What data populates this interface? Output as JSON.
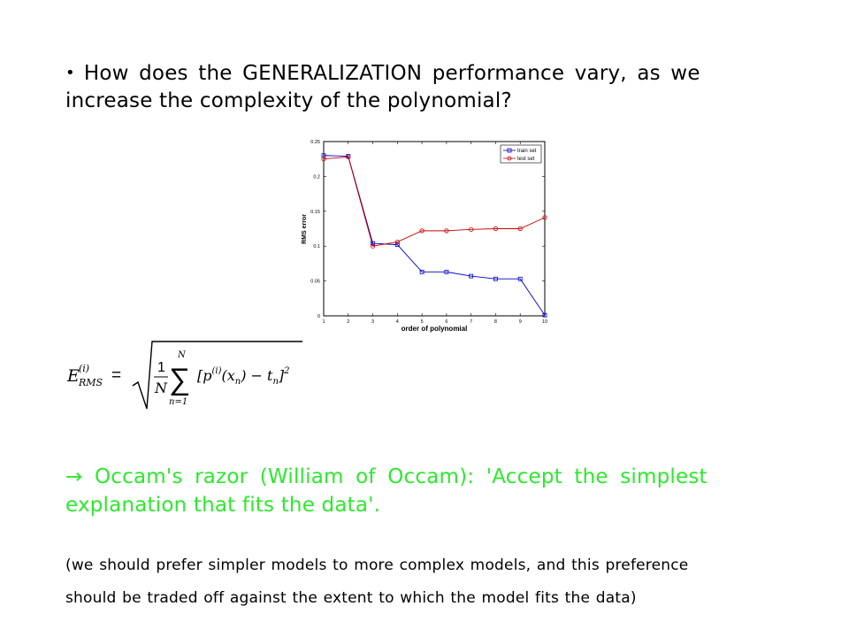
{
  "question": {
    "bullet": "•",
    "line1": "How does the GENERALIZATION performance vary, as we",
    "line2": "increase the complexity of the polynomial?"
  },
  "chart_data": {
    "type": "line",
    "xlabel": "order of polynomial",
    "ylabel": "RMS error",
    "xlim": [
      1,
      10
    ],
    "ylim": [
      0,
      0.25
    ],
    "x": [
      1,
      2,
      3,
      4,
      5,
      6,
      7,
      8,
      9,
      10
    ],
    "xticks": [
      "1",
      "2",
      "3",
      "4",
      "5",
      "6",
      "7",
      "8",
      "9",
      "10"
    ],
    "yticks": [
      "0",
      "0.05",
      "0.1",
      "0.15",
      "0.2",
      "0.25"
    ],
    "legend_position": "top-right",
    "series": [
      {
        "name": "train set",
        "color": "#0000cc",
        "marker": "square",
        "values": [
          0.23,
          0.229,
          0.104,
          0.102,
          0.063,
          0.063,
          0.057,
          0.053,
          0.053,
          0.001
        ]
      },
      {
        "name": "test set",
        "color": "#cc0000",
        "marker": "circle",
        "values": [
          0.225,
          0.228,
          0.1,
          0.106,
          0.122,
          0.122,
          0.124,
          0.125,
          0.125,
          0.141
        ]
      }
    ]
  },
  "formula": {
    "lhs_symbol": "E",
    "lhs_superscript": "(i)",
    "lhs_subscript": "RMS",
    "equals": "=",
    "fraction_numerator": "1",
    "fraction_denominator": "N",
    "sum_upper": "N",
    "sum_lower": "n=1",
    "summand": "[p",
    "summand_superscript": "(i)",
    "summand_rest": "(x",
    "x_subscript": "n",
    "minus_term": ") − t",
    "t_subscript": "n",
    "closing": "]",
    "exponent": "2"
  },
  "occam": {
    "line1": "→ Occam's razor (William of Occam): 'Accept the simplest",
    "line2": "explanation that fits the data'."
  },
  "note": {
    "line1": "(we should prefer simpler models to more complex models, and this preference",
    "line2": "should be traded off against the extent to which the model fits the data)"
  }
}
